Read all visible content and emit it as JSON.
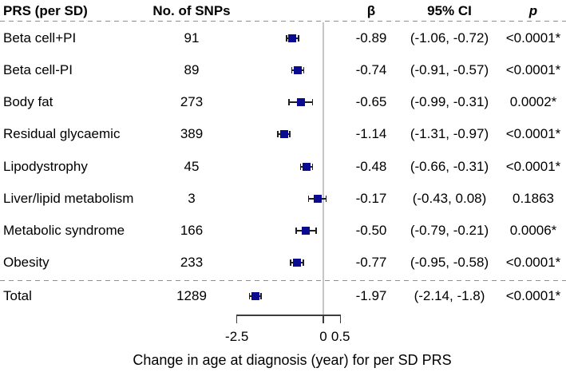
{
  "figure": {
    "marker_color": "#0b0b92",
    "whisker_color": "#1f1f1f",
    "reference_line_color": "#c6c6c6",
    "separator_color": "#8f8f8f"
  },
  "header": {
    "prs": "PRS (per SD)",
    "snps": "No. of SNPs",
    "beta": "β",
    "ci": "95% CI",
    "p": "p"
  },
  "axis": {
    "title": "Change in age at diagnosis (year) for per SD PRS"
  },
  "chart_data": {
    "type": "forest",
    "xlabel": "Change in age at diagnosis (year) for per SD PRS",
    "xlim": [
      -2.5,
      0.5
    ],
    "x_ticks": [
      -2.5,
      0,
      0.5
    ],
    "x_tick_labels": [
      "-2.5",
      "0",
      "0.5"
    ],
    "reference_x": 0,
    "grid": false,
    "columns": [
      "PRS (per SD)",
      "No. of SNPs",
      "β",
      "95% CI",
      "p"
    ],
    "rows": [
      {
        "label": "Beta cell+PI",
        "snps": "91",
        "beta": -0.89,
        "beta_text": "-0.89",
        "ci_low": -1.06,
        "ci_high": -0.72,
        "ci_text": "(-1.06, -0.72)",
        "p_text": "<0.0001*"
      },
      {
        "label": "Beta cell-PI",
        "snps": "89",
        "beta": -0.74,
        "beta_text": "-0.74",
        "ci_low": -0.91,
        "ci_high": -0.57,
        "ci_text": "(-0.91, -0.57)",
        "p_text": "<0.0001*"
      },
      {
        "label": "Body fat",
        "snps": "273",
        "beta": -0.65,
        "beta_text": "-0.65",
        "ci_low": -0.99,
        "ci_high": -0.31,
        "ci_text": "(-0.99, -0.31)",
        "p_text": "0.0002*"
      },
      {
        "label": "Residual glycaemic",
        "snps": "389",
        "beta": -1.14,
        "beta_text": "-1.14",
        "ci_low": -1.31,
        "ci_high": -0.97,
        "ci_text": "(-1.31, -0.97)",
        "p_text": "<0.0001*"
      },
      {
        "label": "Lipodystrophy",
        "snps": "45",
        "beta": -0.48,
        "beta_text": "-0.48",
        "ci_low": -0.66,
        "ci_high": -0.31,
        "ci_text": "(-0.66, -0.31)",
        "p_text": "<0.0001*"
      },
      {
        "label": "Liver/lipid metabolism",
        "snps": "3",
        "beta": -0.17,
        "beta_text": "-0.17",
        "ci_low": -0.43,
        "ci_high": 0.08,
        "ci_text": "(-0.43, 0.08)",
        "p_text": "0.1863"
      },
      {
        "label": "Metabolic syndrome",
        "snps": "166",
        "beta": -0.5,
        "beta_text": "-0.50",
        "ci_low": -0.79,
        "ci_high": -0.21,
        "ci_text": "(-0.79, -0.21)",
        "p_text": "0.0006*"
      },
      {
        "label": "Obesity",
        "snps": "233",
        "beta": -0.77,
        "beta_text": "-0.77",
        "ci_low": -0.95,
        "ci_high": -0.58,
        "ci_text": "(-0.95, -0.58)",
        "p_text": "<0.0001*"
      }
    ],
    "total_row": {
      "label": "Total",
      "snps": "1289",
      "beta": -1.97,
      "beta_text": "-1.97",
      "ci_low": -2.14,
      "ci_high": -1.8,
      "ci_text": "(-2.14, -1.8)",
      "p_text": "<0.0001*"
    }
  }
}
